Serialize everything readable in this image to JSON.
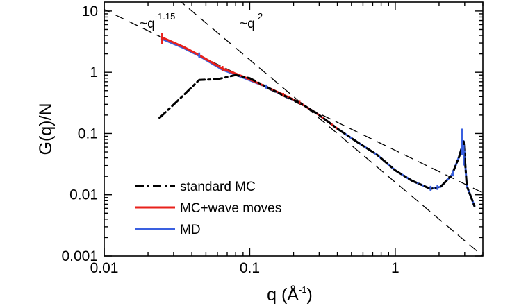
{
  "chart_data": {
    "type": "line",
    "xscale": "log",
    "yscale": "log",
    "xlim": [
      0.01,
      4
    ],
    "ylim": [
      0.001,
      14
    ],
    "xlabel": {
      "main": "q (",
      "angstrom": "Å",
      "exponent": "-1",
      "close": ")"
    },
    "ylabel": "G(q)/N",
    "xticks": [
      {
        "value": 0.01,
        "label": "0.01"
      },
      {
        "value": 0.1,
        "label": "0.1"
      },
      {
        "value": 1,
        "label": "1"
      }
    ],
    "yticks": [
      {
        "value": 0.001,
        "label": "0.001"
      },
      {
        "value": 0.01,
        "label": "0.01"
      },
      {
        "value": 0.1,
        "label": "0.1"
      },
      {
        "value": 1,
        "label": "1"
      },
      {
        "value": 10,
        "label": "10"
      }
    ],
    "series": [
      {
        "name": "standard MC",
        "color": "#000000",
        "dash": "dashdot",
        "x": [
          0.024,
          0.035,
          0.045,
          0.06,
          0.08,
          0.1,
          0.13,
          0.17,
          0.22,
          0.3,
          0.4,
          0.55,
          0.75,
          1.0,
          1.3,
          1.75,
          2.05,
          2.45,
          2.75,
          2.95,
          3.1,
          3.5
        ],
        "y": [
          0.18,
          0.42,
          0.75,
          0.77,
          0.9,
          0.8,
          0.58,
          0.42,
          0.32,
          0.2,
          0.12,
          0.072,
          0.045,
          0.025,
          0.017,
          0.0125,
          0.0135,
          0.021,
          0.042,
          0.075,
          0.014,
          0.0065
        ]
      },
      {
        "name": "MC+wave moves",
        "color": "#e8211b",
        "dash": "solid",
        "x": [
          0.025,
          0.035,
          0.045,
          0.065,
          0.09,
          0.13,
          0.17,
          0.22,
          0.3,
          0.4
        ],
        "y": [
          3.7,
          2.6,
          1.9,
          1.15,
          0.85,
          0.58,
          0.43,
          0.32,
          0.2,
          0.12
        ]
      },
      {
        "name": "MD",
        "color": "#3a60e0",
        "dash": "solid",
        "x": [
          0.025,
          0.035,
          0.045,
          0.065,
          0.09,
          0.13,
          0.17,
          0.22,
          0.3,
          0.4,
          0.55,
          0.75,
          1.0,
          1.3,
          1.75,
          2.05,
          2.45,
          2.75,
          2.95,
          3.1,
          3.5
        ],
        "y": [
          3.5,
          2.5,
          1.85,
          1.1,
          0.82,
          0.58,
          0.42,
          0.32,
          0.2,
          0.12,
          0.072,
          0.045,
          0.025,
          0.017,
          0.0125,
          0.0135,
          0.021,
          0.042,
          0.075,
          0.014,
          0.0065
        ]
      }
    ],
    "error_bars": [
      {
        "x": 0.025,
        "y": 3.6,
        "lo": 2.9,
        "hi": 4.4,
        "color": "#e8211b"
      },
      {
        "x": 0.045,
        "y": 1.9,
        "lo": 1.7,
        "hi": 2.1,
        "color": "#3a60e0"
      },
      {
        "x": 0.065,
        "y": 1.15,
        "lo": 1.05,
        "hi": 1.27,
        "color": "#e8211b"
      },
      {
        "x": 0.13,
        "y": 0.58,
        "lo": 0.54,
        "hi": 0.63,
        "color": "#3a60e0"
      },
      {
        "x": 0.17,
        "y": 0.43,
        "lo": 0.4,
        "hi": 0.46,
        "color": "#e8211b"
      },
      {
        "x": 0.22,
        "y": 0.32,
        "lo": 0.3,
        "hi": 0.35,
        "color": "#e8211b"
      },
      {
        "x": 1.75,
        "y": 0.0125,
        "lo": 0.0115,
        "hi": 0.014,
        "color": "#3a60e0"
      },
      {
        "x": 1.95,
        "y": 0.013,
        "lo": 0.012,
        "hi": 0.0145,
        "color": "#3a60e0"
      },
      {
        "x": 2.5,
        "y": 0.022,
        "lo": 0.02,
        "hi": 0.025,
        "color": "#3a60e0"
      },
      {
        "x": 2.88,
        "y": 0.07,
        "lo": 0.045,
        "hi": 0.12,
        "color": "#3a60e0"
      },
      {
        "x": 2.95,
        "y": 0.045,
        "lo": 0.03,
        "hi": 0.065,
        "color": "#3a60e0"
      }
    ],
    "reference_lines": [
      {
        "label": "~q",
        "exponent": "-1.15",
        "slope": -1.15,
        "through": {
          "x": 0.0105,
          "y": 10
        }
      },
      {
        "label": "~q",
        "exponent": "-2",
        "slope": -2,
        "through": {
          "x": 0.1,
          "y": 1.6
        }
      }
    ],
    "legend": {
      "position": "lower-left",
      "entries": [
        "standard MC",
        "MC+wave moves",
        "MD"
      ]
    }
  }
}
